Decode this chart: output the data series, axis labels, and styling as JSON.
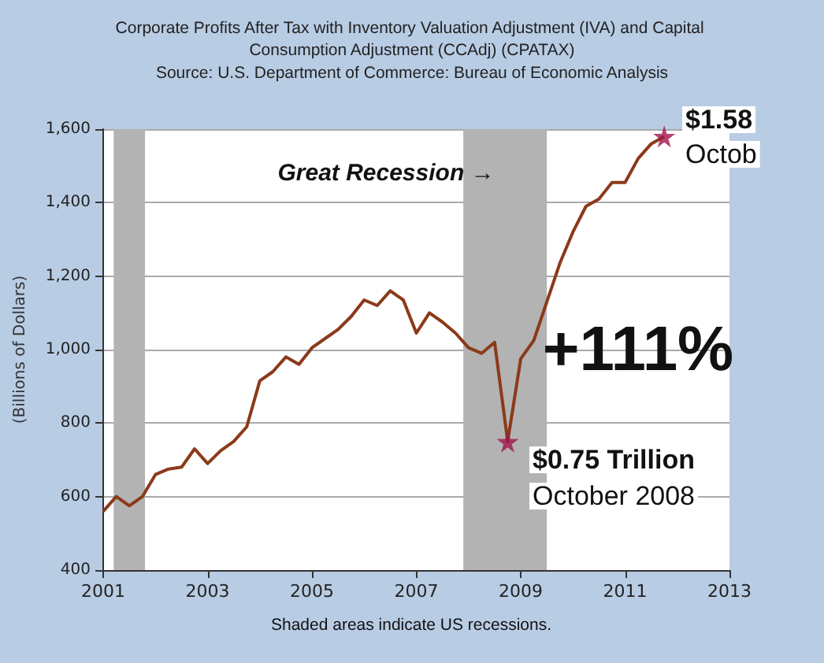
{
  "chart_data": {
    "type": "line",
    "title": "Corporate Profits After Tax with Inventory Valuation Adjustment (IVA) and Capital Consumption Adjustment (CCAdj) (CPATAX)",
    "subtitle": "Source: U.S. Department of Commerce: Bureau of Economic Analysis",
    "ylabel": "(Billions of Dollars)",
    "series": [
      {
        "color": "#8b3a1a",
        "x": [
          2001.0,
          2001.25,
          2001.5,
          2001.75,
          2002.0,
          2002.25,
          2002.5,
          2002.75,
          2003.0,
          2003.25,
          2003.5,
          2003.75,
          2004.0,
          2004.25,
          2004.5,
          2004.75,
          2005.0,
          2005.25,
          2005.5,
          2005.75,
          2006.0,
          2006.25,
          2006.5,
          2006.75,
          2007.0,
          2007.25,
          2007.5,
          2007.75,
          2008.0,
          2008.25,
          2008.5,
          2008.75,
          2009.0,
          2009.25,
          2009.5,
          2009.75,
          2010.0,
          2010.25,
          2010.5,
          2010.75,
          2011.0,
          2011.25,
          2011.5,
          2011.75
        ],
        "values": [
          560,
          600,
          575,
          600,
          660,
          675,
          680,
          730,
          690,
          725,
          750,
          790,
          915,
          940,
          980,
          960,
          1005,
          1030,
          1055,
          1090,
          1135,
          1120,
          1160,
          1135,
          1045,
          1100,
          1075,
          1045,
          1005,
          990,
          1020,
          750,
          975,
          1025,
          1130,
          1235,
          1320,
          1390,
          1410,
          1455,
          1455,
          1520,
          1560,
          1580
        ]
      },
      {
        "type": "scatter",
        "color": "#a0144a",
        "marker": "star",
        "x": [
          2008.75,
          2011.75
        ],
        "values": [
          750,
          1580
        ]
      }
    ],
    "xlim": [
      2001,
      2013
    ],
    "xticks": [
      2001,
      2003,
      2005,
      2007,
      2009,
      2011,
      2013
    ],
    "ylim": [
      400,
      1600
    ],
    "yticks": [
      400,
      600,
      800,
      {
        "value": 1000,
        "label": "1,000"
      },
      {
        "value": 1200,
        "label": "1,200"
      },
      {
        "value": 1400,
        "label": "1,400"
      },
      {
        "value": 1600,
        "label": "1,600"
      }
    ],
    "grid": "y",
    "bands": [
      {
        "axis": "x",
        "from": 2001.2,
        "to": 2001.8,
        "color": "#b3b3b3"
      },
      {
        "axis": "x",
        "from": 2007.9,
        "to": 2009.5,
        "color": "#b3b3b3"
      }
    ],
    "annotations": [
      "Great Recession →",
      "+111%",
      "$0.75 Trillion",
      "October 2008",
      "$1.58",
      "Octob",
      "Shaded areas indicate US recessions."
    ]
  }
}
